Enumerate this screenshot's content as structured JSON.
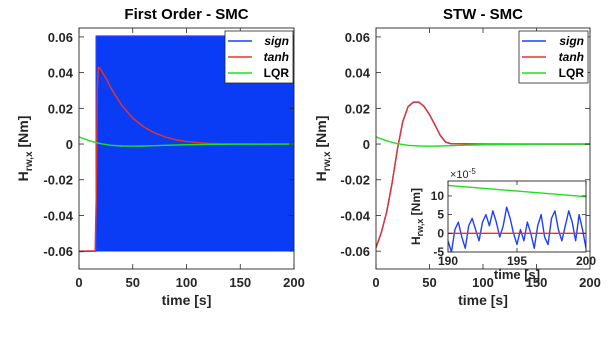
{
  "chart_data": [
    {
      "type": "line",
      "title": "First Order - SMC",
      "xlabel": "time [s]",
      "ylabel_main": "H",
      "ylabel_sub": "rw,x",
      "ylabel_unit": " [Nm]",
      "xlim": [
        0,
        200
      ],
      "ylim": [
        -0.07,
        0.065
      ],
      "xticks": [
        0,
        50,
        100,
        150,
        200
      ],
      "yticks": [
        -0.06,
        -0.04,
        -0.02,
        0,
        0.02,
        0.04,
        0.06
      ],
      "xtick_labels": [
        "0",
        "50",
        "100",
        "150",
        "200"
      ],
      "ytick_labels": [
        "-0.06",
        "-0.04",
        "-0.02",
        "0",
        "0.02",
        "0.04",
        "0.06"
      ],
      "legend": {
        "position": "top-right",
        "entries": [
          "sign",
          "tanh",
          "LQR"
        ]
      },
      "series": [
        {
          "name": "sign",
          "color": "#1f3fff",
          "fill": "#0a3cf5",
          "band": {
            "x": [
              16,
              200
            ],
            "upper": 0.0605,
            "lower": -0.0602
          },
          "x": [
            0,
            15,
            16,
            16,
            200
          ],
          "y": [
            -0.0602,
            -0.06,
            -0.06,
            0.0605,
            0.0605
          ]
        },
        {
          "name": "tanh",
          "color": "#e8332a",
          "x": [
            0,
            10,
            15,
            16,
            17,
            18,
            20,
            25,
            30,
            40,
            50,
            60,
            70,
            80,
            90,
            100,
            110,
            120,
            130,
            150,
            200
          ],
          "y": [
            -0.06,
            -0.0599,
            -0.0598,
            -0.03,
            0.03,
            0.043,
            0.042,
            0.037,
            0.031,
            0.0215,
            0.0145,
            0.0097,
            0.0063,
            0.004,
            0.0024,
            0.0014,
            0.0008,
            0.0004,
            0.0002,
            0.0001,
            0.0
          ]
        },
        {
          "name": "LQR",
          "color": "#1ee01e",
          "x": [
            0,
            10,
            20,
            30,
            40,
            50,
            60,
            70,
            80,
            100,
            120,
            150,
            200
          ],
          "y": [
            0.004,
            0.0018,
            0.0002,
            -0.0007,
            -0.0011,
            -0.0012,
            -0.0011,
            -0.0009,
            -0.0007,
            -0.0004,
            -0.0002,
            -0.0001,
            0.0
          ]
        }
      ]
    },
    {
      "type": "line",
      "title": "STW - SMC",
      "xlabel": "time [s]",
      "ylabel_main": "H",
      "ylabel_sub": "rw,x",
      "ylabel_unit": " [Nm]",
      "xlim": [
        0,
        200
      ],
      "ylim": [
        -0.07,
        0.065
      ],
      "xticks": [
        0,
        50,
        100,
        150,
        200
      ],
      "yticks": [
        -0.06,
        -0.04,
        -0.02,
        0,
        0.02,
        0.04,
        0.06
      ],
      "xtick_labels": [
        "0",
        "50",
        "100",
        "150",
        "200"
      ],
      "ytick_labels": [
        "-0.06",
        "-0.04",
        "-0.02",
        "0",
        "0.02",
        "0.04",
        "0.06"
      ],
      "legend": {
        "position": "top-right",
        "entries": [
          "sign",
          "tanh",
          "LQR"
        ]
      },
      "series": [
        {
          "name": "sign",
          "color": "#1f3fff",
          "x": [
            0,
            5,
            10,
            15,
            20,
            25,
            30,
            35,
            40,
            45,
            50,
            55,
            60,
            65,
            70,
            80,
            100,
            150,
            200
          ],
          "y": [
            -0.058,
            -0.0495,
            -0.038,
            -0.022,
            -0.003,
            0.0125,
            0.021,
            0.0235,
            0.0235,
            0.021,
            0.0165,
            0.0108,
            0.0048,
            0.001,
            0.0001,
            0.0001,
            0.0,
            0.0,
            0.0
          ]
        },
        {
          "name": "tanh",
          "color": "#e8332a",
          "x": [
            0,
            5,
            10,
            15,
            20,
            25,
            30,
            35,
            40,
            45,
            50,
            55,
            60,
            65,
            70,
            80,
            100,
            150,
            200
          ],
          "y": [
            -0.058,
            -0.0495,
            -0.038,
            -0.022,
            -0.003,
            0.0125,
            0.021,
            0.0235,
            0.0235,
            0.021,
            0.0165,
            0.0108,
            0.005,
            0.0012,
            0.0002,
            0.0001,
            0.0,
            0.0,
            0.0
          ]
        },
        {
          "name": "LQR",
          "color": "#1ee01e",
          "x": [
            0,
            10,
            20,
            30,
            40,
            50,
            60,
            70,
            80,
            100,
            120,
            150,
            200
          ],
          "y": [
            0.004,
            0.0018,
            0.0002,
            -0.0007,
            -0.0011,
            -0.0012,
            -0.0011,
            -0.0009,
            -0.0007,
            -0.0004,
            -0.0002,
            -0.0001,
            0.0
          ]
        }
      ],
      "inset": {
        "type": "line",
        "xlabel": "time [s]",
        "ylabel_main": "H",
        "ylabel_sub": "rw,x",
        "ylabel_unit": " [Nm]",
        "exponent": "×10",
        "exponent_power": "-5",
        "xlim": [
          190,
          200
        ],
        "ylim": [
          -5,
          14
        ],
        "xticks": [
          190,
          195,
          200
        ],
        "yticks": [
          -5,
          0,
          5,
          10
        ],
        "xtick_labels": [
          "190",
          "195",
          "200"
        ],
        "ytick_labels": [
          "-5",
          "0",
          "5",
          "10"
        ],
        "series": [
          {
            "name": "sign",
            "color": "#1f3fff",
            "x": [
              190,
              190.25,
              190.5,
              190.75,
              191,
              191.25,
              191.5,
              191.75,
              192,
              192.25,
              192.5,
              192.75,
              193,
              193.25,
              193.5,
              193.75,
              194,
              194.25,
              194.5,
              194.75,
              195,
              195.25,
              195.5,
              195.75,
              196,
              196.25,
              196.5,
              196.75,
              197,
              197.25,
              197.5,
              197.75,
              198,
              198.25,
              198.5,
              198.75,
              199,
              199.25,
              199.5,
              199.75,
              200
            ],
            "y": [
              -2,
              -5,
              1,
              3,
              -1,
              -4,
              2,
              4,
              1,
              -2,
              3,
              5,
              2,
              6,
              3,
              -1,
              2,
              7,
              4,
              0,
              -3,
              1,
              -2,
              3,
              0,
              -4,
              2,
              5,
              -1,
              -3,
              4,
              6,
              1,
              -2,
              2,
              6,
              3,
              -2,
              5,
              1,
              -4
            ]
          },
          {
            "name": "tanh",
            "color": "#e8332a",
            "x": [
              190,
              200
            ],
            "y": [
              0,
              0
            ]
          },
          {
            "name": "LQR",
            "color": "#1ee01e",
            "x": [
              190,
              200
            ],
            "y": [
              12.8,
              9.8
            ]
          }
        ]
      }
    }
  ]
}
